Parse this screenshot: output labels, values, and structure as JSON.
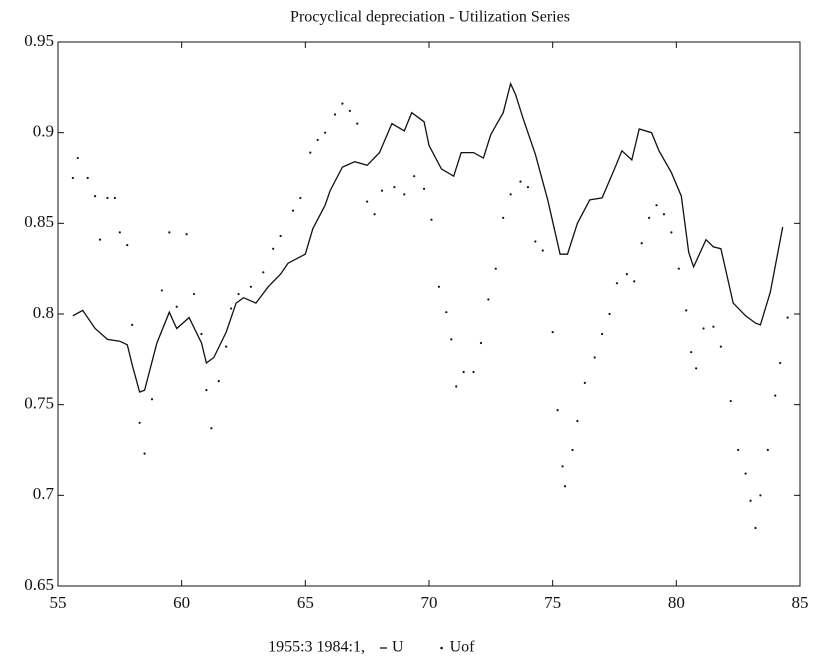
{
  "chart_data": {
    "type": "line",
    "title": "Procyclical depreciation - Utilization Series",
    "period": "1955:3 1984:1,",
    "xlim": [
      55,
      85
    ],
    "xticks": [
      55,
      60,
      65,
      70,
      75,
      80,
      85
    ],
    "ylim": [
      0.65,
      0.95
    ],
    "yticks": [
      0.65,
      0.7,
      0.75,
      0.8,
      0.85,
      0.9,
      0.95
    ],
    "series": [
      {
        "name": "U",
        "style": "line",
        "color": "#111111",
        "x": [
          55.6,
          56,
          56.5,
          57,
          57.5,
          57.8,
          58,
          58.3,
          58.5,
          59,
          59.5,
          59.8,
          60.3,
          60.8,
          61,
          61.3,
          61.8,
          62.2,
          62.5,
          63,
          63.5,
          64,
          64.3,
          65,
          65.3,
          65.8,
          66,
          66.5,
          67,
          67.5,
          68,
          68.5,
          69,
          69.3,
          69.8,
          70,
          70.5,
          71,
          71.3,
          71.8,
          72.2,
          72.5,
          73,
          73.3,
          73.5,
          73.8,
          74.3,
          74.8,
          75.3,
          75.6,
          76,
          76.5,
          77,
          77.5,
          77.8,
          78.2,
          78.5,
          79,
          79.3,
          79.8,
          80.2,
          80.5,
          80.7,
          81.2,
          81.5,
          81.8,
          82.3,
          82.8,
          83.2,
          83.4,
          83.8,
          84.3
        ],
        "values": [
          0.799,
          0.802,
          0.792,
          0.786,
          0.785,
          0.783,
          0.772,
          0.757,
          0.758,
          0.784,
          0.801,
          0.792,
          0.798,
          0.784,
          0.773,
          0.776,
          0.79,
          0.806,
          0.809,
          0.806,
          0.815,
          0.822,
          0.828,
          0.833,
          0.847,
          0.86,
          0.868,
          0.881,
          0.884,
          0.882,
          0.889,
          0.905,
          0.901,
          0.911,
          0.906,
          0.893,
          0.88,
          0.876,
          0.889,
          0.889,
          0.886,
          0.899,
          0.911,
          0.927,
          0.921,
          0.908,
          0.888,
          0.863,
          0.833,
          0.833,
          0.85,
          0.863,
          0.864,
          0.88,
          0.89,
          0.885,
          0.902,
          0.9,
          0.89,
          0.878,
          0.865,
          0.834,
          0.826,
          0.841,
          0.837,
          0.836,
          0.806,
          0.799,
          0.795,
          0.794,
          0.812,
          0.848
        ]
      },
      {
        "name": "Uof",
        "style": "dots",
        "color": "#111111",
        "x": [
          55.6,
          55.8,
          56.2,
          56.5,
          56.7,
          57,
          57.3,
          57.5,
          57.8,
          58,
          58.3,
          58.5,
          58.8,
          59.2,
          59.5,
          59.8,
          60.2,
          60.5,
          60.8,
          61,
          61.2,
          61.5,
          61.8,
          62,
          62.3,
          62.8,
          63.3,
          63.7,
          64,
          64.5,
          64.8,
          65.2,
          65.5,
          65.8,
          66.2,
          66.5,
          66.8,
          67.1,
          67.5,
          67.8,
          68.1,
          68.6,
          69,
          69.4,
          69.8,
          70.1,
          70.4,
          70.7,
          70.9,
          71.1,
          71.4,
          71.8,
          72.1,
          72.4,
          72.7,
          73,
          73.3,
          73.7,
          74,
          74.3,
          74.6,
          75,
          75.2,
          75.4,
          75.5,
          75.8,
          76,
          76.3,
          76.7,
          77,
          77.3,
          77.6,
          78,
          78.3,
          78.6,
          78.9,
          79.2,
          79.5,
          79.8,
          80.1,
          80.4,
          80.6,
          80.8,
          81.1,
          81.5,
          81.8,
          82.2,
          82.5,
          82.8,
          83,
          83.2,
          83.4,
          83.7,
          84,
          84.2,
          84.5
        ],
        "values": [
          0.875,
          0.886,
          0.875,
          0.865,
          0.841,
          0.864,
          0.864,
          0.845,
          0.838,
          0.794,
          0.74,
          0.723,
          0.753,
          0.813,
          0.845,
          0.804,
          0.844,
          0.811,
          0.789,
          0.758,
          0.737,
          0.763,
          0.782,
          0.803,
          0.811,
          0.815,
          0.823,
          0.836,
          0.843,
          0.857,
          0.864,
          0.889,
          0.896,
          0.9,
          0.91,
          0.916,
          0.912,
          0.905,
          0.862,
          0.855,
          0.868,
          0.87,
          0.866,
          0.876,
          0.869,
          0.852,
          0.815,
          0.801,
          0.786,
          0.76,
          0.768,
          0.768,
          0.784,
          0.808,
          0.825,
          0.853,
          0.866,
          0.873,
          0.87,
          0.84,
          0.835,
          0.79,
          0.747,
          0.716,
          0.705,
          0.725,
          0.741,
          0.762,
          0.776,
          0.789,
          0.8,
          0.817,
          0.822,
          0.818,
          0.839,
          0.853,
          0.86,
          0.855,
          0.845,
          0.825,
          0.802,
          0.779,
          0.77,
          0.792,
          0.793,
          0.782,
          0.752,
          0.725,
          0.712,
          0.697,
          0.682,
          0.7,
          0.725,
          0.755,
          0.773,
          0.798
        ]
      }
    ]
  }
}
